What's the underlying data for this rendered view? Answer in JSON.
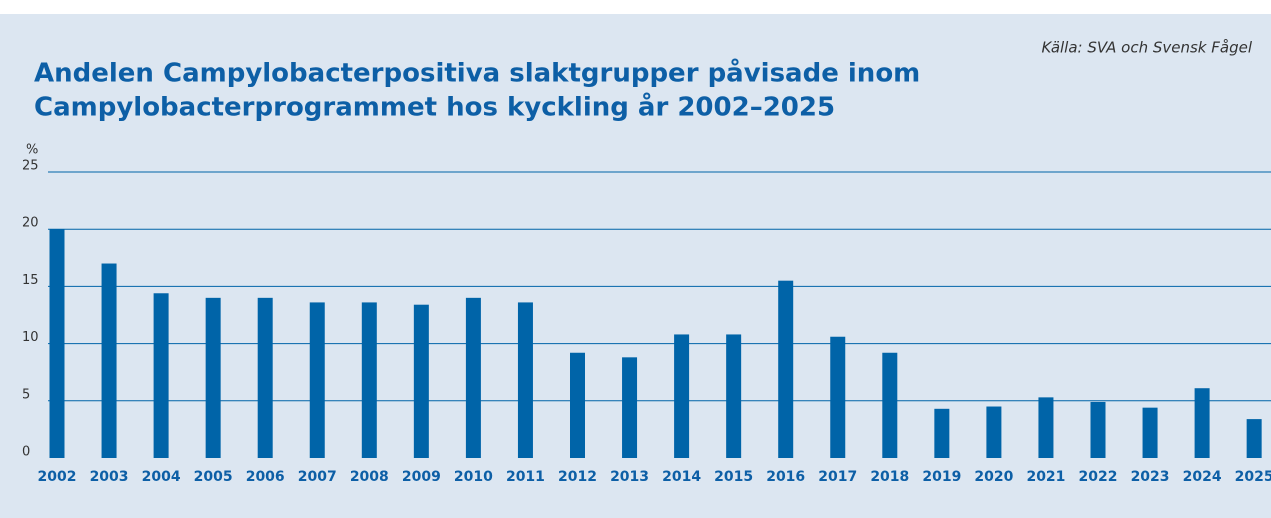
{
  "chart_data": {
    "type": "bar",
    "title": [
      "Andelen Campylobacterpositiva slaktgrupper påvisade inom",
      "Campylobacterprogrammet hos kyckling år 2002–2025"
    ],
    "source": "Källa: SVA och Svensk Fågel",
    "y_axis_label": "%",
    "categories": [
      "2002",
      "2003",
      "2004",
      "2005",
      "2006",
      "2007",
      "2008",
      "2009",
      "2010",
      "2011",
      "2012",
      "2013",
      "2014",
      "2015",
      "2016",
      "2017",
      "2018",
      "2019",
      "2020",
      "2021",
      "2022",
      "2023",
      "2024",
      "2025"
    ],
    "values": [
      20,
      17.0,
      14.4,
      14.0,
      14.0,
      13.6,
      13.6,
      13.4,
      14.0,
      13.6,
      9.2,
      8.8,
      10.8,
      10.8,
      15.5,
      10.6,
      9.2,
      4.3,
      4.5,
      5.3,
      4.9,
      4.4,
      6.1,
      3.4
    ],
    "color": "#0064a8",
    "ylim": [
      0,
      25
    ],
    "yticks": [
      0,
      5,
      10,
      15,
      20,
      25
    ],
    "grid": true
  }
}
